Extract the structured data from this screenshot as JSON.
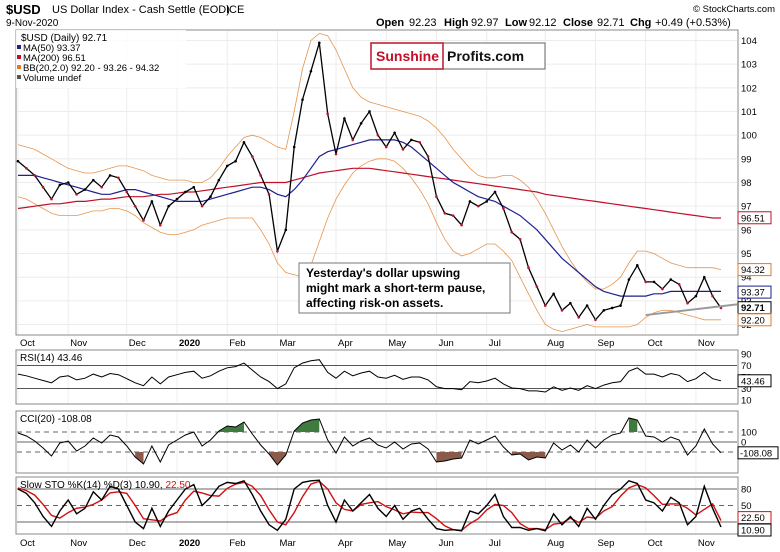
{
  "header": {
    "symbol": "$USD",
    "name": "US Dollar Index - Cash Settle (EOD)",
    "exchange": "ICE",
    "date": "9-Nov-2020",
    "watermark": "© StockCharts.com",
    "quote": {
      "open_label": "Open",
      "open": "92.23",
      "high_label": "High",
      "high": "92.97",
      "low_label": "Low",
      "low": "92.12",
      "close_label": "Close",
      "close": "92.71",
      "chg_label": "Chg",
      "chg": "+0.49 (+0.53%)"
    }
  },
  "logo": {
    "part1": "Sunshine",
    "part2": "Profits.com"
  },
  "legend": [
    {
      "label": "$USD (Daily) 92.71",
      "color": "#000000"
    },
    {
      "label": "MA(50) 93.37",
      "color": "#1f1f8f"
    },
    {
      "label": "MA(200) 96.51",
      "color": "#c0102a"
    },
    {
      "label": "BB(20,2.0) 92.20 - 93.26 - 94.32",
      "color": "#e07a22"
    },
    {
      "label": "Volume undef",
      "color": "#555555"
    }
  ],
  "annotation": {
    "lines": [
      "Yesterday's dollar upswing",
      "might mark a short-term pause,",
      "affecting risk-on assets."
    ]
  },
  "chart_data": [
    {
      "type": "line",
      "title": "$USD (Daily)",
      "x_tick_labels": [
        "Oct",
        "Nov",
        "Dec",
        "2020",
        "Feb",
        "Mar",
        "Apr",
        "May",
        "Jun",
        "Jul",
        "Aug",
        "Sep",
        "Oct",
        "Nov"
      ],
      "y_ticks": [
        92,
        93,
        94,
        95,
        96,
        97,
        98,
        99,
        100,
        101,
        102,
        103,
        104
      ],
      "ylim": [
        91.6,
        104.4
      ],
      "markers": [
        {
          "label": "94.32",
          "value": 94.32,
          "color": "#e07a22"
        },
        {
          "label": "96.51",
          "value": 96.51,
          "color": "#c0102a"
        },
        {
          "label": "93.37",
          "value": 93.37,
          "color": "#1f1f8f"
        },
        {
          "label": "92.71",
          "value": 92.71,
          "color": "#000000"
        },
        {
          "label": "92.20",
          "value": 92.2,
          "color": "#e07a22"
        }
      ],
      "series": [
        {
          "name": "$USD (Daily)",
          "color": "#000000",
          "values": [
            98.9,
            98.6,
            98.3,
            97.8,
            97.3,
            97.9,
            98.0,
            97.5,
            97.7,
            98.1,
            97.8,
            98.3,
            98.2,
            97.6,
            97.0,
            96.4,
            97.2,
            96.2,
            97.0,
            97.3,
            97.6,
            97.8,
            97.0,
            97.4,
            98.1,
            98.7,
            98.9,
            99.7,
            99.1,
            98.3,
            97.5,
            95.1,
            96.0,
            99.5,
            101.5,
            102.7,
            103.9,
            100.9,
            99.2,
            100.7,
            99.8,
            100.5,
            101.0,
            100.0,
            99.5,
            100.1,
            99.4,
            99.8,
            99.7,
            99.1,
            97.4,
            96.7,
            96.6,
            96.2,
            97.2,
            97.0,
            97.2,
            97.6,
            96.9,
            95.9,
            95.6,
            94.4,
            93.6,
            92.8,
            93.3,
            92.6,
            92.9,
            92.3,
            92.8,
            92.2,
            92.6,
            92.7,
            92.8,
            93.9,
            94.5,
            93.8,
            93.8,
            93.5,
            93.9,
            93.7,
            92.9,
            93.2,
            94.0,
            93.2,
            92.7
          ]
        },
        {
          "name": "MA(50)",
          "color": "#1f1f8f",
          "values": [
            98.3,
            98.3,
            98.3,
            98.2,
            98.1,
            98.0,
            97.9,
            97.8,
            97.7,
            97.6,
            97.5,
            97.5,
            97.6,
            97.7,
            97.7,
            97.6,
            97.5,
            97.4,
            97.3,
            97.2,
            97.2,
            97.2,
            97.2,
            97.3,
            97.4,
            97.5,
            97.6,
            97.7,
            97.8,
            97.8,
            97.7,
            97.5,
            97.4,
            97.7,
            98.1,
            98.6,
            99.1,
            99.3,
            99.4,
            99.5,
            99.6,
            99.7,
            99.8,
            99.8,
            99.8,
            99.8,
            99.7,
            99.5,
            99.2,
            98.9,
            98.6,
            98.3,
            98.0,
            97.8,
            97.6,
            97.4,
            97.3,
            97.2,
            97.0,
            96.8,
            96.6,
            96.3,
            96.0,
            95.6,
            95.2,
            94.8,
            94.5,
            94.2,
            93.9,
            93.6,
            93.4,
            93.3,
            93.2,
            93.2,
            93.2,
            93.2,
            93.3,
            93.3,
            93.4,
            93.4,
            93.4,
            93.4,
            93.4,
            93.4,
            93.4
          ]
        },
        {
          "name": "MA(200)",
          "color": "#c0102a",
          "values": [
            96.9,
            96.95,
            97.0,
            97.05,
            97.1,
            97.1,
            97.15,
            97.2,
            97.2,
            97.25,
            97.3,
            97.3,
            97.35,
            97.4,
            97.4,
            97.4,
            97.45,
            97.5,
            97.5,
            97.55,
            97.6,
            97.6,
            97.65,
            97.7,
            97.75,
            97.8,
            97.85,
            97.9,
            97.95,
            98.0,
            98.0,
            98.0,
            98.0,
            98.1,
            98.2,
            98.3,
            98.4,
            98.45,
            98.5,
            98.55,
            98.6,
            98.6,
            98.6,
            98.55,
            98.5,
            98.45,
            98.4,
            98.35,
            98.3,
            98.25,
            98.2,
            98.15,
            98.1,
            98.05,
            98.0,
            97.95,
            97.9,
            97.85,
            97.8,
            97.75,
            97.7,
            97.65,
            97.6,
            97.5,
            97.45,
            97.4,
            97.35,
            97.3,
            97.25,
            97.2,
            97.15,
            97.1,
            97.05,
            97.0,
            96.95,
            96.9,
            96.85,
            96.8,
            96.75,
            96.7,
            96.65,
            96.6,
            96.55,
            96.5,
            96.5
          ]
        },
        {
          "name": "BB upper",
          "color": "#e07a22",
          "values": [
            99.6,
            99.5,
            99.4,
            99.2,
            99.0,
            98.8,
            98.6,
            98.5,
            98.4,
            98.4,
            98.5,
            98.6,
            98.7,
            98.7,
            98.6,
            98.5,
            98.3,
            98.2,
            98.1,
            98.1,
            98.1,
            98.0,
            98.0,
            98.2,
            98.6,
            99.1,
            99.5,
            99.9,
            100.0,
            99.9,
            99.7,
            99.5,
            99.4,
            101.0,
            102.8,
            104.0,
            104.3,
            104.2,
            103.6,
            102.8,
            102.0,
            101.6,
            101.4,
            101.3,
            101.2,
            101.1,
            101.0,
            100.9,
            100.8,
            100.6,
            100.3,
            99.9,
            99.4,
            99.0,
            98.6,
            98.3,
            98.2,
            98.2,
            98.3,
            98.3,
            98.1,
            97.8,
            97.3,
            96.7,
            96.0,
            95.3,
            94.7,
            94.2,
            93.8,
            93.5,
            93.5,
            93.7,
            94.0,
            94.6,
            95.1,
            95.1,
            95.0,
            94.8,
            94.6,
            94.5,
            94.4,
            94.4,
            94.4,
            94.4,
            94.32
          ]
        },
        {
          "name": "BB lower",
          "color": "#e07a22",
          "values": [
            97.4,
            97.3,
            97.1,
            96.9,
            96.7,
            96.6,
            96.6,
            96.6,
            96.7,
            96.8,
            96.8,
            96.9,
            96.9,
            96.8,
            96.6,
            96.3,
            96.1,
            95.9,
            95.8,
            95.8,
            95.9,
            96.0,
            96.2,
            96.3,
            96.4,
            96.5,
            96.5,
            96.5,
            96.5,
            96.0,
            95.4,
            94.6,
            94.2,
            94.1,
            94.0,
            94.5,
            95.5,
            96.5,
            97.3,
            97.9,
            98.4,
            98.7,
            98.9,
            99.0,
            99.0,
            98.9,
            98.6,
            98.2,
            97.7,
            97.1,
            96.3,
            95.6,
            95.1,
            94.9,
            95.0,
            95.2,
            95.4,
            95.4,
            95.1,
            94.7,
            94.0,
            93.3,
            92.6,
            92.0,
            91.8,
            91.7,
            91.8,
            91.9,
            92.0,
            91.9,
            91.9,
            91.9,
            91.9,
            91.9,
            92.0,
            92.3,
            92.5,
            92.6,
            92.6,
            92.5,
            92.4,
            92.3,
            92.2,
            92.2,
            92.2
          ]
        }
      ],
      "trendline": {
        "x": [
          75,
          84
        ],
        "y": [
          92.4,
          92.85
        ],
        "color": "#999999"
      }
    },
    {
      "type": "line",
      "title": "RSI(14) 43.46",
      "y_ticks": [
        10,
        30,
        50,
        70,
        90
      ],
      "ylim": [
        5,
        95
      ],
      "marker": {
        "label": "43.46",
        "value": 43.46
      },
      "series": [
        {
          "name": "RSI(14)",
          "color": "#000000",
          "values": [
            55,
            52,
            48,
            44,
            40,
            50,
            52,
            45,
            48,
            55,
            50,
            56,
            54,
            47,
            40,
            35,
            50,
            38,
            50,
            54,
            58,
            60,
            48,
            52,
            60,
            66,
            68,
            74,
            62,
            50,
            42,
            30,
            38,
            66,
            74,
            78,
            80,
            58,
            48,
            60,
            52,
            57,
            60,
            50,
            48,
            53,
            46,
            50,
            50,
            45,
            33,
            30,
            30,
            28,
            42,
            40,
            43,
            48,
            38,
            31,
            30,
            26,
            26,
            24,
            33,
            27,
            31,
            27,
            35,
            30,
            36,
            40,
            42,
            60,
            66,
            55,
            55,
            50,
            56,
            53,
            42,
            47,
            58,
            47,
            43.46
          ]
        }
      ]
    },
    {
      "type": "area",
      "title": "CCI(20) -108.08",
      "y_ticks": [
        -100,
        0,
        100
      ],
      "ylim": [
        -300,
        300
      ],
      "marker": {
        "label": "-108.08",
        "value": -108.08
      },
      "series": [
        {
          "name": "CCI(20)",
          "color": "#000000",
          "values": [
            90,
            60,
            10,
            -60,
            -140,
            -10,
            10,
            -90,
            -40,
            40,
            -10,
            70,
            50,
            -40,
            -150,
            -220,
            -40,
            -200,
            -30,
            20,
            70,
            100,
            -40,
            20,
            110,
            160,
            150,
            200,
            80,
            -30,
            -120,
            -230,
            -130,
            110,
            190,
            220,
            230,
            20,
            -110,
            50,
            -40,
            10,
            40,
            -30,
            -60,
            0,
            -70,
            -20,
            -10,
            -70,
            -200,
            -190,
            -170,
            -160,
            20,
            -20,
            20,
            60,
            -50,
            -130,
            -120,
            -180,
            -150,
            -160,
            -10,
            -80,
            -30,
            -100,
            20,
            -60,
            20,
            70,
            90,
            240,
            220,
            60,
            50,
            0,
            50,
            20,
            -130,
            -40,
            130,
            -20,
            -108.08
          ]
        }
      ]
    },
    {
      "type": "line",
      "title": "Slow STO %K(14) %D(3) 10.90, 22.50",
      "x_tick_labels": [
        "Oct",
        "Nov",
        "Dec",
        "2020",
        "Feb",
        "Mar",
        "Apr",
        "May",
        "Jun",
        "Jul",
        "Aug",
        "Sep",
        "Oct",
        "Nov"
      ],
      "y_ticks": [
        20,
        50,
        80
      ],
      "ylim": [
        0,
        100
      ],
      "markers": [
        {
          "label": "22.50",
          "value": 22.5,
          "color": "#d01010"
        },
        {
          "label": "10.90",
          "value": 10.9,
          "color": "#000000"
        }
      ],
      "series": [
        {
          "name": "%K(14)",
          "color": "#000000",
          "values": [
            80,
            72,
            55,
            30,
            12,
            40,
            60,
            35,
            45,
            75,
            60,
            85,
            80,
            50,
            20,
            8,
            45,
            12,
            40,
            60,
            80,
            88,
            50,
            65,
            85,
            92,
            90,
            95,
            70,
            40,
            15,
            5,
            25,
            80,
            92,
            95,
            96,
            50,
            20,
            60,
            40,
            55,
            70,
            45,
            30,
            50,
            25,
            40,
            45,
            25,
            8,
            5,
            6,
            4,
            40,
            35,
            50,
            70,
            30,
            10,
            10,
            5,
            8,
            4,
            35,
            15,
            30,
            12,
            45,
            25,
            50,
            70,
            80,
            95,
            90,
            60,
            55,
            40,
            65,
            55,
            15,
            30,
            85,
            45,
            10.9
          ]
        },
        {
          "name": "%D(3)",
          "color": "#d01010",
          "values": [
            82,
            77,
            69,
            52,
            32,
            27,
            37,
            45,
            47,
            52,
            60,
            73,
            75,
            72,
            50,
            26,
            24,
            22,
            32,
            37,
            60,
            76,
            73,
            68,
            67,
            81,
            89,
            92,
            85,
            68,
            42,
            20,
            15,
            37,
            66,
            89,
            94,
            80,
            55,
            43,
            40,
            52,
            55,
            57,
            48,
            42,
            35,
            38,
            37,
            37,
            26,
            13,
            6,
            5,
            17,
            26,
            42,
            52,
            50,
            37,
            17,
            8,
            8,
            6,
            16,
            18,
            27,
            19,
            29,
            27,
            40,
            48,
            67,
            82,
            88,
            82,
            68,
            52,
            53,
            53,
            45,
            33,
            43,
            53,
            22.5
          ]
        }
      ]
    }
  ]
}
